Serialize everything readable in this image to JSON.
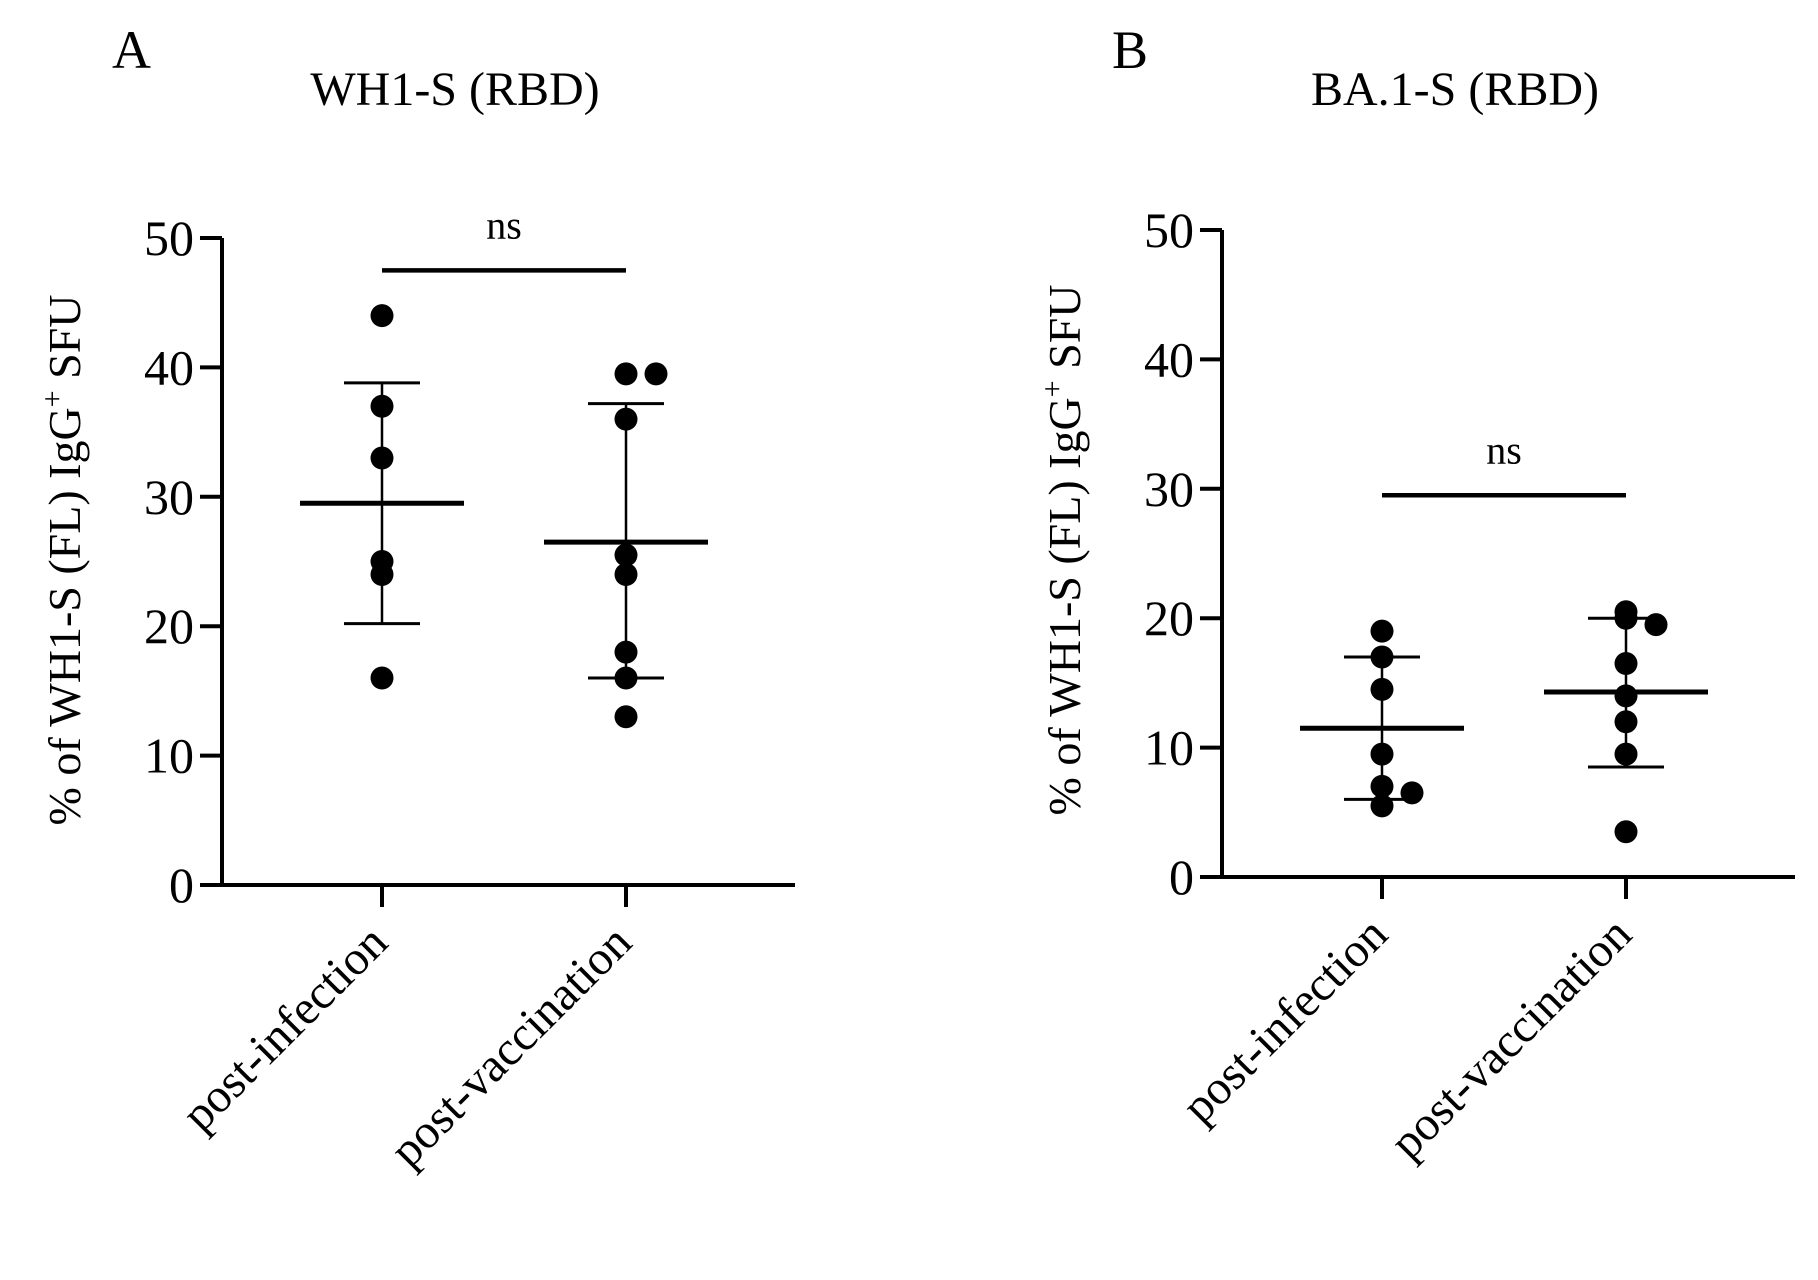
{
  "chart_data": [
    {
      "type": "scatter",
      "panel": "A",
      "title": "WH1-S (RBD)",
      "ylabel": {
        "pre": "% of WH1-S (FL) IgG",
        "sup": "+",
        "post": " SFU"
      },
      "xlabel": "",
      "categories": [
        "post-infection",
        "post-vaccination"
      ],
      "ylim": [
        0,
        50
      ],
      "yticks": [
        0,
        10,
        20,
        30,
        40,
        50
      ],
      "series": [
        {
          "name": "post-infection",
          "values": [
            44,
            37,
            33,
            25,
            24,
            16
          ],
          "mean": 29.5,
          "sd_low": 20.2,
          "sd_high": 38.8
        },
        {
          "name": "post-vaccination",
          "values": [
            39.5,
            39.5,
            36,
            25.5,
            24,
            18,
            16,
            13
          ],
          "mean": 26.5,
          "sd_low": 16,
          "sd_high": 37.2
        }
      ],
      "significance": {
        "label": "ns",
        "y": 47.5
      }
    },
    {
      "type": "scatter",
      "panel": "B",
      "title": "BA.1-S (RBD)",
      "ylabel": {
        "pre": "% of WH1-S (FL) IgG",
        "sup": "+",
        "post": " SFU"
      },
      "xlabel": "",
      "categories": [
        "post-infection",
        "post-vaccination"
      ],
      "ylim": [
        0,
        50
      ],
      "yticks": [
        0,
        10,
        20,
        30,
        40,
        50
      ],
      "series": [
        {
          "name": "post-infection",
          "values": [
            19,
            17,
            14.5,
            9.5,
            7,
            6.5,
            5.5
          ],
          "mean": 11.5,
          "sd_low": 6,
          "sd_high": 17
        },
        {
          "name": "post-vaccination",
          "values": [
            20.5,
            20,
            19.5,
            16.5,
            14,
            12,
            9.5,
            3.5
          ],
          "mean": 14.3,
          "sd_low": 8.5,
          "sd_high": 20
        }
      ],
      "significance": {
        "label": "ns",
        "y": 29.5
      }
    }
  ]
}
